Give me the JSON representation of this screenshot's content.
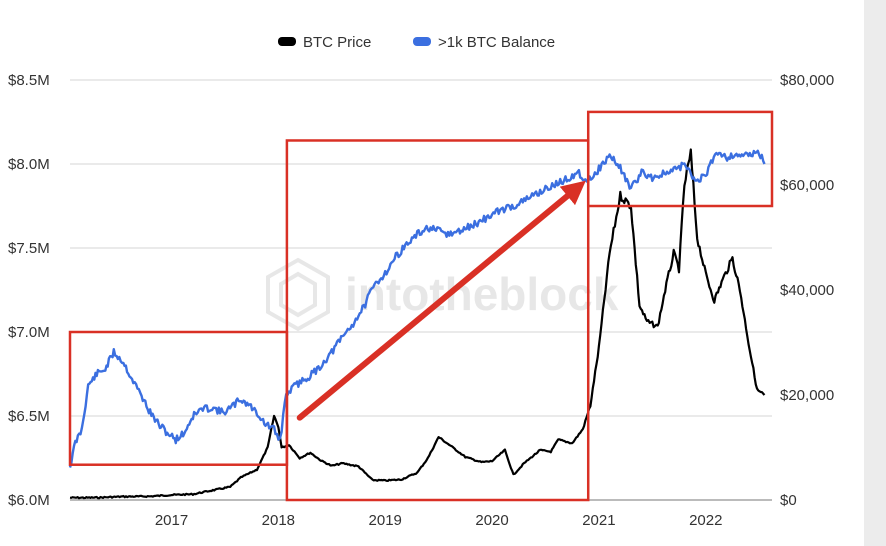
{
  "chart_data": {
    "type": "line",
    "legend": {
      "placement": "top-center"
    },
    "series": [
      {
        "name": "BTC Price",
        "axis": "right",
        "color": "#000000"
      },
      {
        "name": ">1k BTC Balance",
        "axis": "left",
        "color": "#3b6fe0"
      }
    ],
    "x_ticks": [
      "2017",
      "2018",
      "2019",
      "2020",
      "2021",
      "2022"
    ],
    "x_range": [
      2016.05,
      2022.62
    ],
    "y_left": {
      "ticks": [
        "$6.0M",
        "$6.5M",
        "$7.0M",
        "$7.5M",
        "$8.0M",
        "$8.5M"
      ],
      "range": [
        6.0,
        8.5
      ]
    },
    "y_right": {
      "ticks": [
        "$0",
        "$20,000",
        "$40,000",
        "$60,000",
        "$80,000"
      ],
      "range": [
        0,
        80000
      ]
    },
    "grid": true,
    "watermark": "intotheblock",
    "balance_points": [
      [
        2016.05,
        6.2
      ],
      [
        2016.1,
        6.34
      ],
      [
        2016.16,
        6.42
      ],
      [
        2016.22,
        6.68
      ],
      [
        2016.3,
        6.75
      ],
      [
        2016.38,
        6.78
      ],
      [
        2016.46,
        6.88
      ],
      [
        2016.55,
        6.82
      ],
      [
        2016.63,
        6.72
      ],
      [
        2016.72,
        6.62
      ],
      [
        2016.8,
        6.52
      ],
      [
        2016.88,
        6.45
      ],
      [
        2016.96,
        6.4
      ],
      [
        2017.04,
        6.36
      ],
      [
        2017.12,
        6.4
      ],
      [
        2017.2,
        6.5
      ],
      [
        2017.28,
        6.54
      ],
      [
        2017.38,
        6.55
      ],
      [
        2017.48,
        6.52
      ],
      [
        2017.56,
        6.55
      ],
      [
        2017.64,
        6.6
      ],
      [
        2017.72,
        6.57
      ],
      [
        2017.8,
        6.52
      ],
      [
        2017.88,
        6.45
      ],
      [
        2017.96,
        6.42
      ],
      [
        2018.0,
        6.36
      ],
      [
        2018.03,
        6.4
      ],
      [
        2018.06,
        6.6
      ],
      [
        2018.1,
        6.65
      ],
      [
        2018.2,
        6.7
      ],
      [
        2018.3,
        6.74
      ],
      [
        2018.4,
        6.8
      ],
      [
        2018.5,
        6.88
      ],
      [
        2018.6,
        6.97
      ],
      [
        2018.7,
        7.05
      ],
      [
        2018.8,
        7.15
      ],
      [
        2018.9,
        7.28
      ],
      [
        2019.0,
        7.35
      ],
      [
        2019.1,
        7.45
      ],
      [
        2019.2,
        7.52
      ],
      [
        2019.3,
        7.58
      ],
      [
        2019.4,
        7.62
      ],
      [
        2019.5,
        7.6
      ],
      [
        2019.6,
        7.58
      ],
      [
        2019.7,
        7.6
      ],
      [
        2019.8,
        7.63
      ],
      [
        2019.9,
        7.66
      ],
      [
        2020.0,
        7.7
      ],
      [
        2020.1,
        7.73
      ],
      [
        2020.2,
        7.75
      ],
      [
        2020.3,
        7.78
      ],
      [
        2020.4,
        7.82
      ],
      [
        2020.5,
        7.85
      ],
      [
        2020.6,
        7.88
      ],
      [
        2020.7,
        7.91
      ],
      [
        2020.8,
        7.95
      ],
      [
        2020.9,
        7.9
      ],
      [
        2021.0,
        7.97
      ],
      [
        2021.1,
        8.05
      ],
      [
        2021.2,
        7.98
      ],
      [
        2021.3,
        7.85
      ],
      [
        2021.4,
        7.95
      ],
      [
        2021.5,
        7.92
      ],
      [
        2021.6,
        7.94
      ],
      [
        2021.7,
        7.96
      ],
      [
        2021.8,
        8.0
      ],
      [
        2021.9,
        7.9
      ],
      [
        2022.0,
        7.93
      ],
      [
        2022.1,
        8.08
      ],
      [
        2022.2,
        8.04
      ],
      [
        2022.3,
        8.06
      ],
      [
        2022.4,
        8.05
      ],
      [
        2022.5,
        8.07
      ],
      [
        2022.55,
        8.0
      ]
    ],
    "price_points": [
      [
        2016.05,
        430
      ],
      [
        2016.3,
        450
      ],
      [
        2016.55,
        650
      ],
      [
        2016.8,
        700
      ],
      [
        2017.0,
        960
      ],
      [
        2017.2,
        1100
      ],
      [
        2017.4,
        1900
      ],
      [
        2017.55,
        2500
      ],
      [
        2017.65,
        4300
      ],
      [
        2017.8,
        5800
      ],
      [
        2017.9,
        10000
      ],
      [
        2017.96,
        16000
      ],
      [
        2018.0,
        14000
      ],
      [
        2018.03,
        10000
      ],
      [
        2018.1,
        10500
      ],
      [
        2018.2,
        8000
      ],
      [
        2018.3,
        9000
      ],
      [
        2018.4,
        7500
      ],
      [
        2018.5,
        6500
      ],
      [
        2018.6,
        7000
      ],
      [
        2018.75,
        6400
      ],
      [
        2018.88,
        3800
      ],
      [
        2019.0,
        3700
      ],
      [
        2019.15,
        3900
      ],
      [
        2019.3,
        5200
      ],
      [
        2019.4,
        8000
      ],
      [
        2019.5,
        12000
      ],
      [
        2019.6,
        10500
      ],
      [
        2019.75,
        8200
      ],
      [
        2019.9,
        7200
      ],
      [
        2020.0,
        7400
      ],
      [
        2020.12,
        9500
      ],
      [
        2020.2,
        4800
      ],
      [
        2020.3,
        7000
      ],
      [
        2020.45,
        9500
      ],
      [
        2020.55,
        9200
      ],
      [
        2020.62,
        11500
      ],
      [
        2020.75,
        10800
      ],
      [
        2020.85,
        13500
      ],
      [
        2020.92,
        18000
      ],
      [
        2021.0,
        29000
      ],
      [
        2021.1,
        47000
      ],
      [
        2021.2,
        58000
      ],
      [
        2021.3,
        56000
      ],
      [
        2021.38,
        37000
      ],
      [
        2021.45,
        34000
      ],
      [
        2021.55,
        33000
      ],
      [
        2021.62,
        40000
      ],
      [
        2021.7,
        47000
      ],
      [
        2021.75,
        44000
      ],
      [
        2021.8,
        60000
      ],
      [
        2021.86,
        66000
      ],
      [
        2021.92,
        50000
      ],
      [
        2022.0,
        43000
      ],
      [
        2022.08,
        38000
      ],
      [
        2022.16,
        42000
      ],
      [
        2022.25,
        46000
      ],
      [
        2022.32,
        40000
      ],
      [
        2022.4,
        30000
      ],
      [
        2022.48,
        21000
      ],
      [
        2022.55,
        20000
      ]
    ],
    "annotations": [
      {
        "type": "box",
        "x": [
          2016.05,
          2018.08
        ],
        "y_left": [
          6.21,
          7.0
        ],
        "color": "#d93025"
      },
      {
        "type": "box",
        "x": [
          2018.08,
          2020.9
        ],
        "y_left": [
          6.0,
          8.14
        ],
        "color": "#d93025"
      },
      {
        "type": "box",
        "x": [
          2020.9,
          2022.62
        ],
        "y_left": [
          7.75,
          8.31
        ],
        "color": "#d93025"
      },
      {
        "type": "arrow",
        "from": [
          2018.2,
          6.49
        ],
        "to": [
          2020.8,
          7.86
        ],
        "color": "#d93025"
      }
    ]
  }
}
